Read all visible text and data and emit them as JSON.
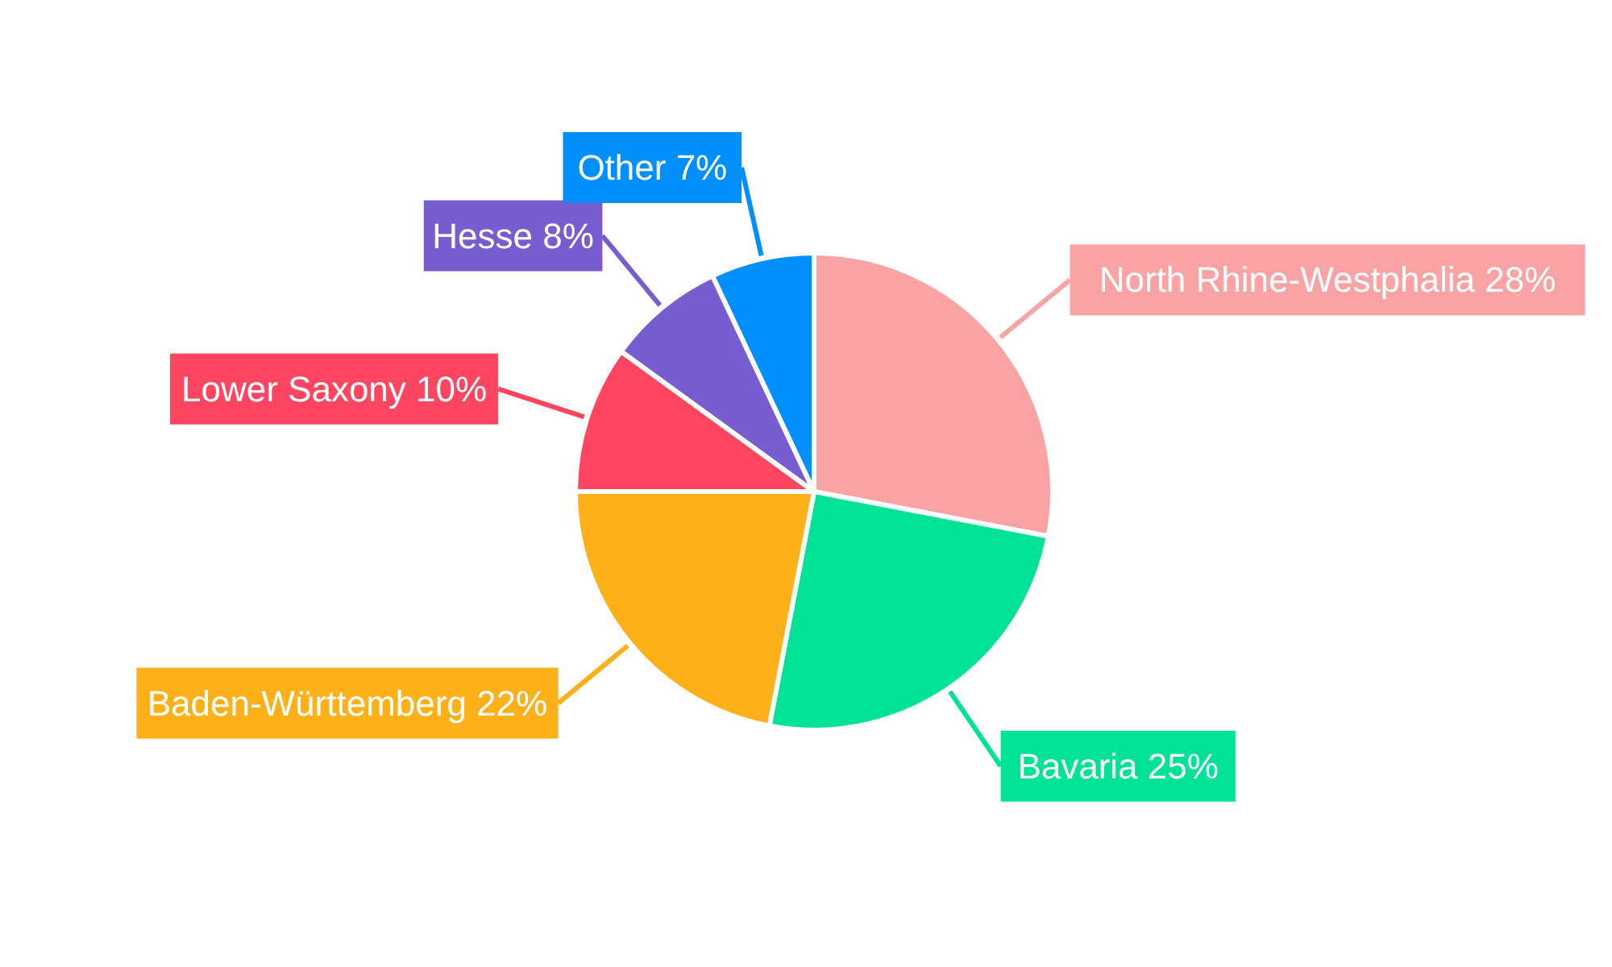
{
  "chart_data": {
    "type": "pie",
    "categories": [
      "North Rhine-Westphalia",
      "Bavaria",
      "Baden-Württemberg",
      "Lower Saxony",
      "Hesse",
      "Other"
    ],
    "values": [
      28,
      25,
      22,
      10,
      8,
      7
    ],
    "value_labels": [
      "28%",
      "25%",
      "22%",
      "10%",
      "8%",
      "7%"
    ],
    "colors": [
      "#f9a3a4",
      "#00e396",
      "#feb019",
      "#ff4560",
      "#775dd0",
      "#008ffb"
    ],
    "legend": false
  }
}
